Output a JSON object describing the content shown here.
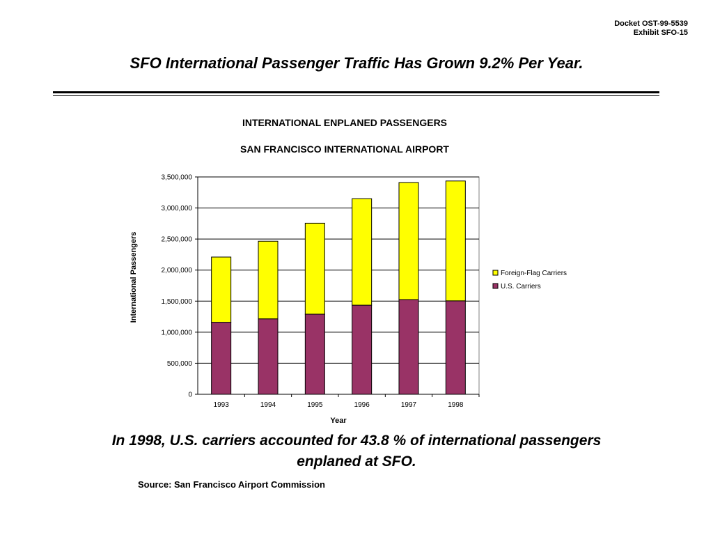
{
  "docket": {
    "line1": "Docket OST-99-5539",
    "line2": "Exhibit SFO-15"
  },
  "headline": "SFO International Passenger Traffic Has Grown 9.2% Per Year.",
  "conclusion": {
    "line1": "In 1998, U.S. carriers accounted for 43.8 % of international passengers",
    "line2": "enplaned at SFO."
  },
  "source": "Source: San Francisco Airport Commission",
  "colors": {
    "us": "#993366",
    "foreign": "#ffff00",
    "grid": "#000000"
  },
  "chart_data": {
    "type": "bar",
    "stacked": true,
    "title": "INTERNATIONAL ENPLANED PASSENGERS",
    "subtitle": "SAN FRANCISCO INTERNATIONAL AIRPORT",
    "xlabel": "Year",
    "ylabel": "International Passengers",
    "categories": [
      "1993",
      "1994",
      "1995",
      "1996",
      "1997",
      "1998"
    ],
    "series": [
      {
        "name": "U.S. Carriers",
        "color": "#993366",
        "values": [
          1160000,
          1215000,
          1290000,
          1435000,
          1525000,
          1505000
        ]
      },
      {
        "name": "Foreign-Flag Carriers",
        "color": "#ffff00",
        "values": [
          1050000,
          1250000,
          1465000,
          1715000,
          1885000,
          1930000
        ]
      }
    ],
    "yticks": [
      "0",
      "500,000",
      "1,000,000",
      "1,500,000",
      "2,000,000",
      "2,500,000",
      "3,000,000",
      "3,500,000"
    ],
    "ylim": [
      0,
      3500000
    ],
    "grid": true,
    "legend_position": "right",
    "legend_order": [
      "Foreign-Flag Carriers",
      "U.S. Carriers"
    ]
  }
}
